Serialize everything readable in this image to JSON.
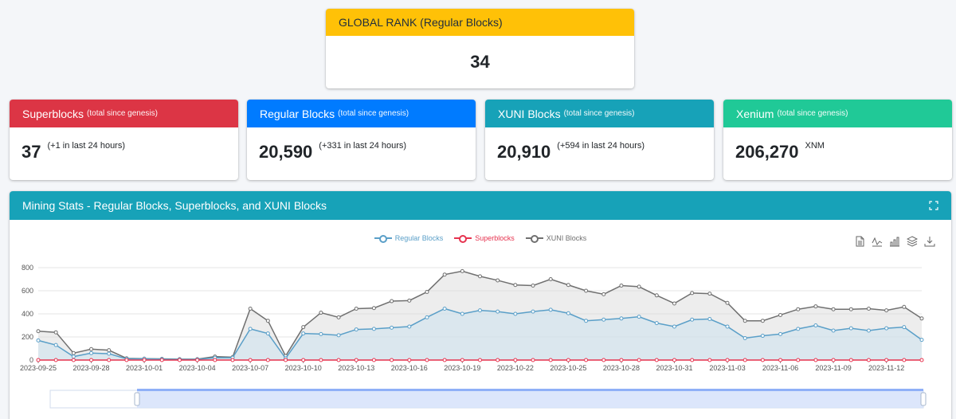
{
  "rank": {
    "title": "GLOBAL RANK (Regular Blocks)",
    "value": "34"
  },
  "stats": [
    {
      "title": "Superblocks",
      "subtitle": "(total since genesis)",
      "value": "37",
      "note": "(+1 in last 24 hours)"
    },
    {
      "title": "Regular Blocks",
      "subtitle": "(total since genesis)",
      "value": "20,590",
      "note": "(+331 in last 24 hours)"
    },
    {
      "title": "XUNI Blocks",
      "subtitle": "(total since genesis)",
      "value": "20,910",
      "note": "(+594 in last 24 hours)"
    },
    {
      "title": "Xenium",
      "subtitle": "(total since genesis)",
      "value": "206,270",
      "note": "XNM"
    }
  ],
  "chart_card": {
    "title": "Mining Stats - Regular Blocks, Superblocks, and XUNI Blocks"
  },
  "toolbox": [
    "data-view-icon",
    "line-chart-icon",
    "bar-chart-icon",
    "stack-icon",
    "download-icon"
  ],
  "colors": {
    "regular": "#5a9fc8",
    "super": "#e6334f",
    "xuni": "#707070"
  },
  "chart_data": {
    "type": "line",
    "legend": [
      "Regular Blocks",
      "Superblocks",
      "XUNI Blocks"
    ],
    "ylim": [
      0,
      800
    ],
    "yticks": [
      0,
      200,
      400,
      600,
      800
    ],
    "x_ticks": [
      "2023-09-25",
      "2023-09-28",
      "2023-10-01",
      "2023-10-04",
      "2023-10-07",
      "2023-10-10",
      "2023-10-13",
      "2023-10-16",
      "2023-10-19",
      "2023-10-22",
      "2023-10-25",
      "2023-10-28",
      "2023-10-31",
      "2023-11-03",
      "2023-11-06",
      "2023-11-09",
      "2023-11-12"
    ],
    "x": [
      "2023-09-25",
      "2023-09-26",
      "2023-09-27",
      "2023-09-28",
      "2023-09-29",
      "2023-09-30",
      "2023-10-01",
      "2023-10-02",
      "2023-10-03",
      "2023-10-04",
      "2023-10-05",
      "2023-10-06",
      "2023-10-07",
      "2023-10-08",
      "2023-10-09",
      "2023-10-10",
      "2023-10-11",
      "2023-10-12",
      "2023-10-13",
      "2023-10-14",
      "2023-10-15",
      "2023-10-16",
      "2023-10-17",
      "2023-10-18",
      "2023-10-19",
      "2023-10-20",
      "2023-10-21",
      "2023-10-22",
      "2023-10-23",
      "2023-10-24",
      "2023-10-25",
      "2023-10-26",
      "2023-10-27",
      "2023-10-28",
      "2023-10-29",
      "2023-10-30",
      "2023-10-31",
      "2023-11-01",
      "2023-11-02",
      "2023-11-03",
      "2023-11-04",
      "2023-11-05",
      "2023-11-06",
      "2023-11-07",
      "2023-11-08",
      "2023-11-09",
      "2023-11-10",
      "2023-11-11",
      "2023-11-12",
      "2023-11-13",
      "2023-11-14"
    ],
    "series": [
      {
        "name": "Regular Blocks",
        "values": [
          170,
          130,
          30,
          60,
          55,
          10,
          10,
          8,
          5,
          5,
          20,
          20,
          270,
          230,
          15,
          230,
          225,
          215,
          265,
          270,
          280,
          290,
          370,
          445,
          400,
          430,
          420,
          400,
          420,
          435,
          405,
          340,
          350,
          360,
          375,
          320,
          290,
          350,
          355,
          290,
          190,
          210,
          225,
          270,
          300,
          255,
          275,
          255,
          275,
          285,
          175
        ]
      },
      {
        "name": "Superblocks",
        "values": [
          0,
          0,
          0,
          0,
          0,
          0,
          0,
          0,
          0,
          0,
          0,
          0,
          0,
          0,
          0,
          0,
          0,
          0,
          0,
          0,
          0,
          0,
          0,
          0,
          0,
          0,
          0,
          0,
          0,
          0,
          0,
          0,
          0,
          0,
          0,
          0,
          0,
          0,
          0,
          0,
          0,
          0,
          0,
          0,
          0,
          0,
          0,
          0,
          0,
          0,
          0
        ]
      },
      {
        "name": "XUNI Blocks",
        "values": [
          250,
          240,
          60,
          95,
          85,
          15,
          12,
          10,
          8,
          8,
          30,
          25,
          445,
          340,
          35,
          285,
          410,
          370,
          445,
          450,
          510,
          515,
          590,
          740,
          770,
          725,
          690,
          650,
          645,
          700,
          650,
          600,
          570,
          645,
          635,
          560,
          490,
          580,
          575,
          495,
          340,
          340,
          390,
          440,
          465,
          440,
          440,
          445,
          430,
          460,
          360
        ]
      }
    ]
  }
}
